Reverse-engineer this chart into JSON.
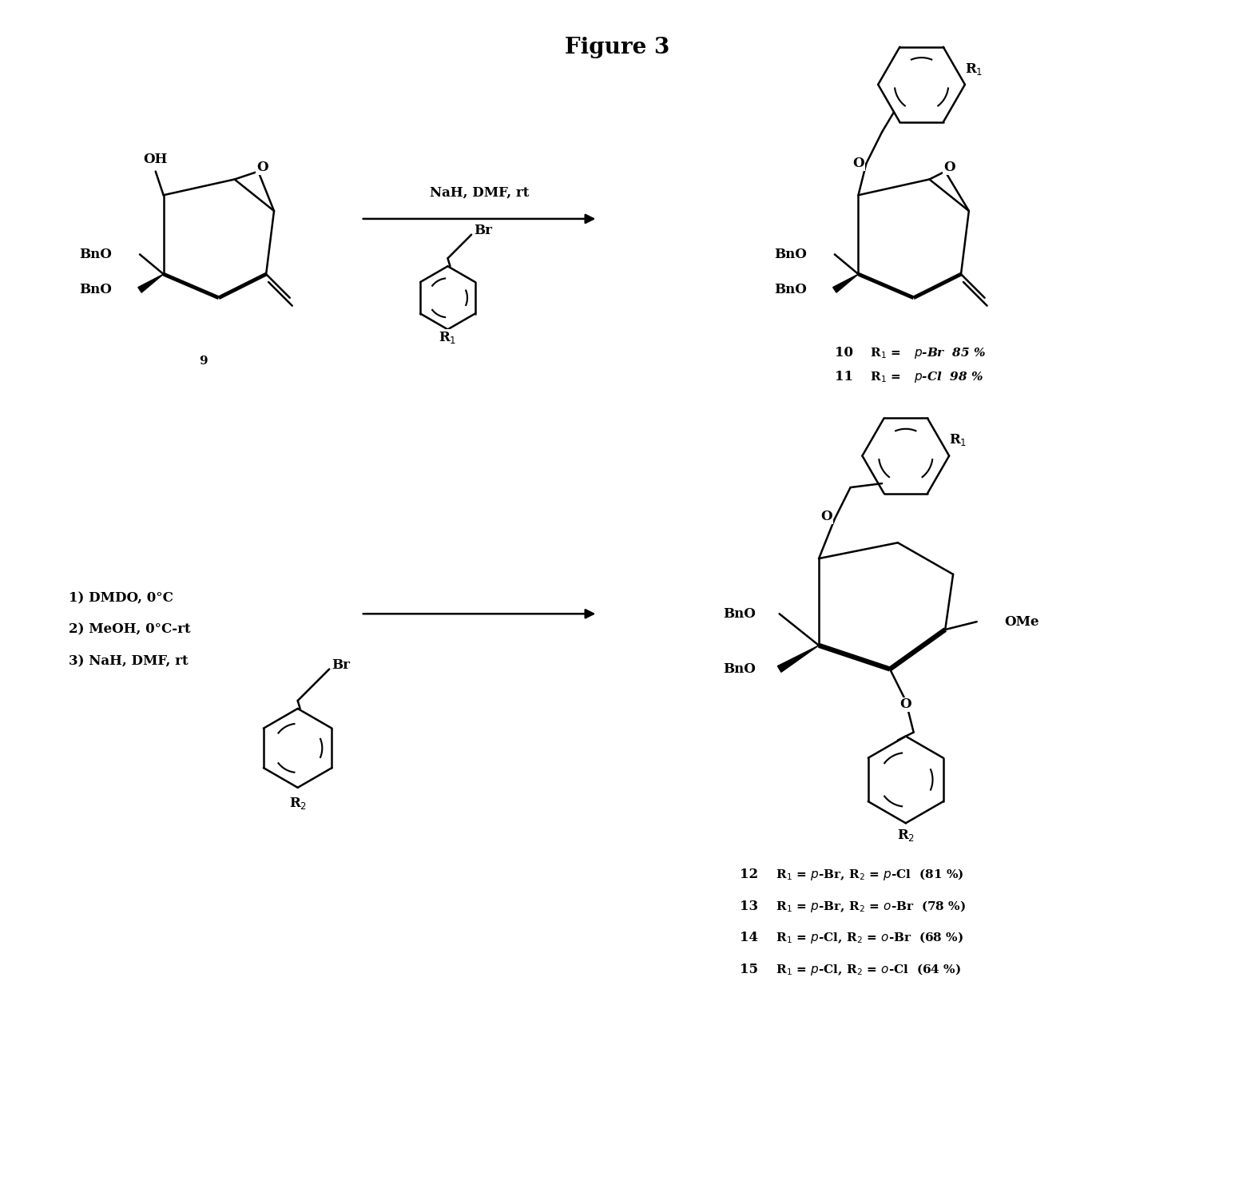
{
  "title": "Figure 3",
  "title_fontsize": 24,
  "bg_color": "#ffffff",
  "fig_width": 15.46,
  "fig_height": 14.97,
  "reaction1_conditions": "NaH, DMF, rt",
  "reaction2_conditions": [
    "1) DMDO, 0°C",
    "2) MeOH, 0°C-rt",
    "3) NaH, DMF, rt"
  ],
  "text_color": "#000000",
  "font_family": "DejaVu Serif"
}
